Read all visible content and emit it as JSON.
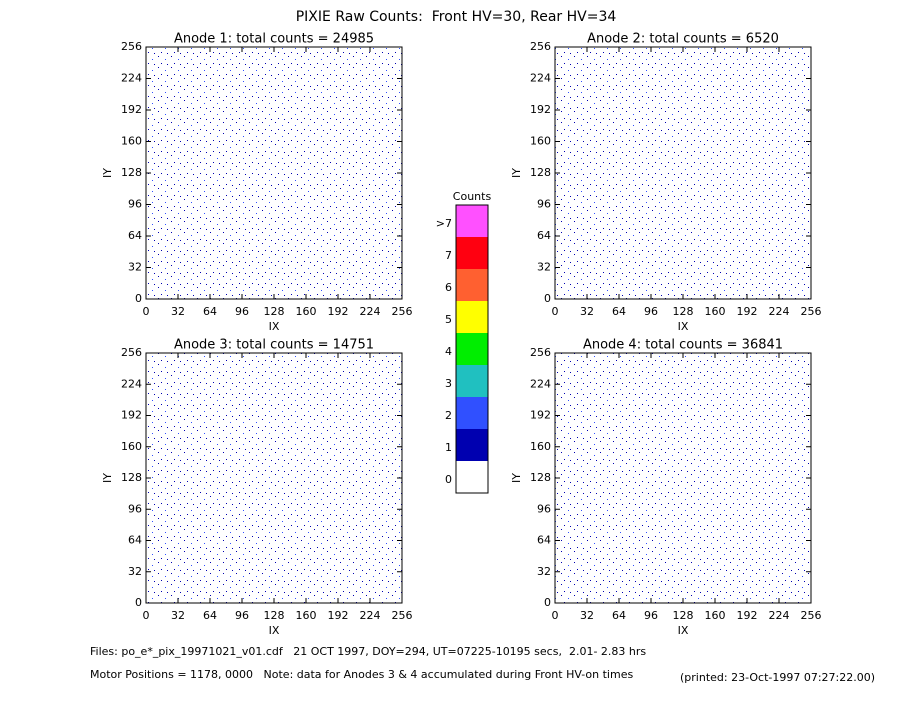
{
  "title": "PIXIE Raw Counts:  Front HV=30, Rear HV=34",
  "chart_data": [
    {
      "type": "heatmap",
      "title": "Anode 1: total counts = 24985",
      "x_label": "IX",
      "y_label": "IY",
      "xlim": [
        0,
        256
      ],
      "ylim": [
        0,
        256
      ],
      "xticks": [
        0,
        32,
        64,
        96,
        128,
        160,
        192,
        224,
        256
      ],
      "yticks": [
        0,
        32,
        64,
        96,
        128,
        160,
        192,
        224,
        256
      ]
    },
    {
      "type": "heatmap",
      "title": "Anode 2: total counts = 6520",
      "x_label": "IX",
      "y_label": "IY",
      "xlim": [
        0,
        256
      ],
      "ylim": [
        0,
        256
      ],
      "xticks": [
        0,
        32,
        64,
        96,
        128,
        160,
        192,
        224,
        256
      ],
      "yticks": [
        0,
        32,
        64,
        96,
        128,
        160,
        192,
        224,
        256
      ]
    },
    {
      "type": "heatmap",
      "title": "Anode 3: total counts = 14751",
      "x_label": "IX",
      "y_label": "IY",
      "xlim": [
        0,
        256
      ],
      "ylim": [
        0,
        256
      ],
      "xticks": [
        0,
        32,
        64,
        96,
        128,
        160,
        192,
        224,
        256
      ],
      "yticks": [
        0,
        32,
        64,
        96,
        128,
        160,
        192,
        224,
        256
      ]
    },
    {
      "type": "heatmap",
      "title": "Anode 4: total counts = 36841",
      "x_label": "IX",
      "y_label": "IY",
      "xlim": [
        0,
        256
      ],
      "ylim": [
        0,
        256
      ],
      "xticks": [
        0,
        32,
        64,
        96,
        128,
        160,
        192,
        224,
        256
      ],
      "yticks": [
        0,
        32,
        64,
        96,
        128,
        160,
        192,
        224,
        256
      ]
    }
  ],
  "colorbar": {
    "title": "Counts",
    "ticks": [
      0,
      1,
      2,
      3,
      4,
      5,
      6,
      7,
      {
        "value": 8,
        "label": ">7"
      }
    ],
    "colors": [
      "#ffffff",
      "#0000b0",
      "#3050ff",
      "#20c0c0",
      "#00ee00",
      "#ffff00",
      "#ff6030",
      "#ff0010",
      "#ff50ff"
    ]
  },
  "footer": {
    "files": "Files: po_e*_pix_19971021_v01.cdf   21 OCT 1997, DOY=294, UT=07225-10195 secs,  2.01- 2.83 hrs",
    "motor": "Motor Positions = 1178, 0000   Note: data for Anodes 3 & 4 accumulated during Front HV-on times",
    "printed": "(printed: 23-Oct-1997 07:27:22.00)"
  }
}
